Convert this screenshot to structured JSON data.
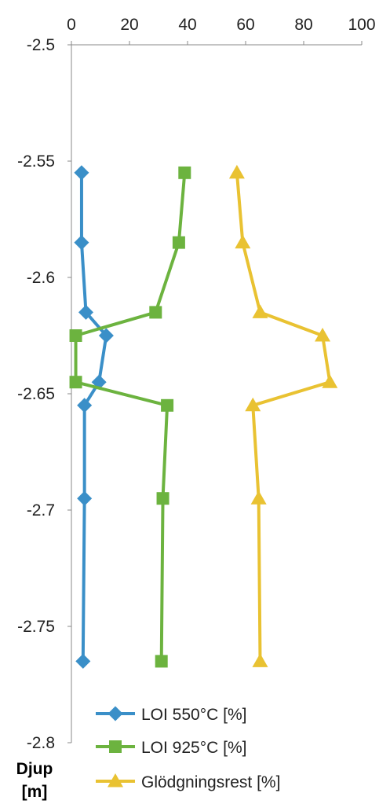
{
  "chart_data": {
    "type": "line",
    "orientation": "depth-profile",
    "x_axis": {
      "position": "top",
      "min": 0,
      "max": 100,
      "ticks": [
        0,
        20,
        40,
        60,
        80,
        100
      ]
    },
    "y_axis": {
      "min": -2.8,
      "max": -2.5,
      "ticks": [
        -2.5,
        -2.55,
        -2.6,
        -2.65,
        -2.7,
        -2.75,
        -2.8
      ],
      "tick_labels": [
        "-2.5",
        "-2.55",
        "-2.6",
        "-2.65",
        "-2.7",
        "-2.75",
        "-2.8"
      ]
    },
    "ylabel_lines": [
      "Djup",
      "[m]"
    ],
    "grid": false,
    "legend_position": "bottom",
    "series": [
      {
        "name": "LOI 550°C [%]",
        "color": "#3a8fc8",
        "marker": "diamond",
        "points": [
          [
            3.5,
            -2.555
          ],
          [
            3.5,
            -2.585
          ],
          [
            5,
            -2.615
          ],
          [
            12,
            -2.625
          ],
          [
            9.5,
            -2.645
          ],
          [
            4.5,
            -2.655
          ],
          [
            4.5,
            -2.695
          ],
          [
            4,
            -2.765
          ]
        ]
      },
      {
        "name": "LOI 925°C [%]",
        "color": "#6cb33f",
        "marker": "square",
        "points": [
          [
            39,
            -2.555
          ],
          [
            37,
            -2.585
          ],
          [
            29,
            -2.615
          ],
          [
            1.5,
            -2.625
          ],
          [
            1.5,
            -2.645
          ],
          [
            33,
            -2.655
          ],
          [
            31.5,
            -2.695
          ],
          [
            31,
            -2.765
          ]
        ]
      },
      {
        "name": "Glödgningsrest [%]",
        "color": "#e9c232",
        "marker": "triangle",
        "points": [
          [
            57,
            -2.555
          ],
          [
            59,
            -2.585
          ],
          [
            65,
            -2.615
          ],
          [
            86.5,
            -2.625
          ],
          [
            89,
            -2.645
          ],
          [
            62.5,
            -2.655
          ],
          [
            64.5,
            -2.695
          ],
          [
            65,
            -2.765
          ]
        ]
      }
    ]
  }
}
